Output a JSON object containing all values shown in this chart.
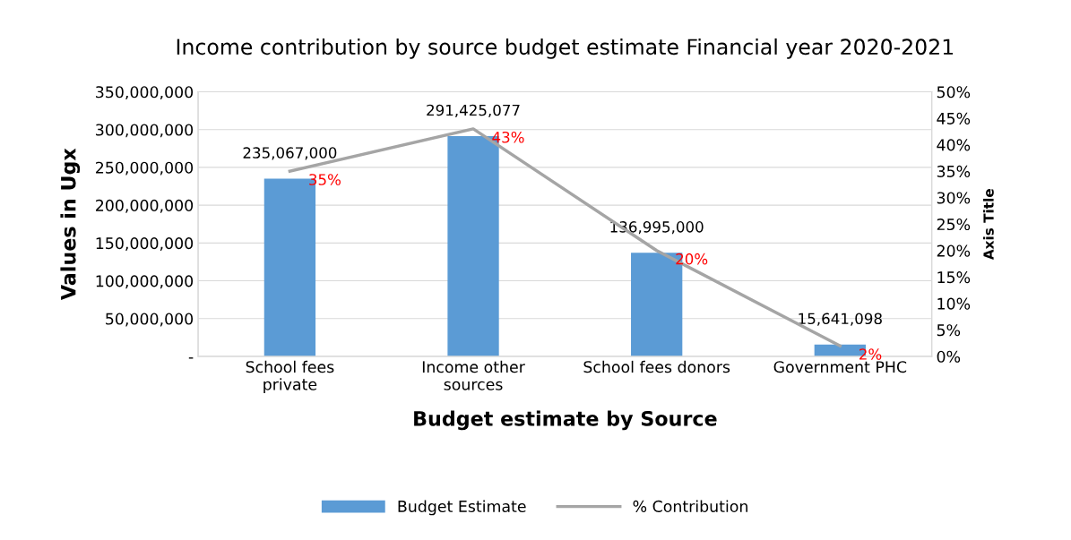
{
  "chart_data": {
    "type": "bar",
    "title": "Income contribution by source budget estimate Financial year 2020-2021",
    "categories": [
      "School fees private",
      "Income other sources",
      "School fees donors",
      "Government PHC"
    ],
    "series": [
      {
        "name": "Budget Estimate",
        "color": "#5b9bd5",
        "values": [
          235067000,
          291425077,
          136995000,
          15641098
        ],
        "value_labels": [
          "235,067,000",
          "291,425,077",
          "136,995,000",
          "15,641,098"
        ]
      },
      {
        "name": "% Contribution",
        "type": "line",
        "axis": "y2",
        "color": "#a5a5a5",
        "values": [
          35,
          43,
          20,
          2
        ],
        "value_labels": [
          "35%",
          "43%",
          "20%",
          "2%"
        ]
      }
    ],
    "xlabel": "Budget estimate by Source",
    "ylabel": "Values in Ugx",
    "y2label": "Axis Title",
    "ylim": [
      0,
      350000000
    ],
    "yticks": [
      {
        "value": 0,
        "label": "-"
      },
      {
        "value": 50000000,
        "label": "50,000,000"
      },
      {
        "value": 100000000,
        "label": "100,000,000"
      },
      {
        "value": 150000000,
        "label": "150,000,000"
      },
      {
        "value": 200000000,
        "label": "200,000,000"
      },
      {
        "value": 250000000,
        "label": "250,000,000"
      },
      {
        "value": 300000000,
        "label": "300,000,000"
      },
      {
        "value": 350000000,
        "label": "350,000,000"
      }
    ],
    "y2lim": [
      0,
      50
    ],
    "y2ticks": [
      {
        "value": 0,
        "label": "0%"
      },
      {
        "value": 5,
        "label": "5%"
      },
      {
        "value": 10,
        "label": "10%"
      },
      {
        "value": 15,
        "label": "15%"
      },
      {
        "value": 20,
        "label": "20%"
      },
      {
        "value": 25,
        "label": "25%"
      },
      {
        "value": 30,
        "label": "30%"
      },
      {
        "value": 35,
        "label": "35%"
      },
      {
        "value": 40,
        "label": "40%"
      },
      {
        "value": 45,
        "label": "45%"
      },
      {
        "value": 50,
        "label": "50%"
      }
    ],
    "grid": "y",
    "legend": "bottom",
    "marker": "none",
    "line_style": "solid"
  }
}
